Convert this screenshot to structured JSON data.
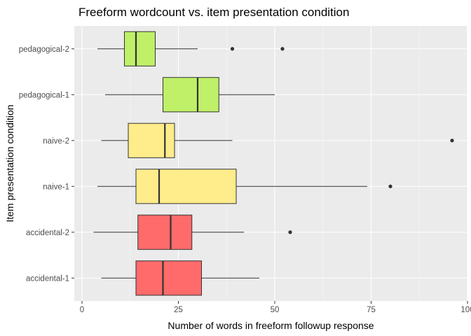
{
  "chart_data": {
    "type": "boxplot",
    "orientation": "horizontal",
    "title": "Freeform wordcount vs. item presentation condition",
    "xlabel": "Number of words in freeform followup response",
    "ylabel": "Item presentation condition",
    "xlim": [
      -2,
      100
    ],
    "x_ticks": [
      0,
      25,
      50,
      75,
      100
    ],
    "x_tick_labels": [
      "0",
      "25",
      "50",
      "75",
      "100"
    ],
    "grid": true,
    "legend": "none",
    "colors": {
      "panel": "#ebebeb",
      "grid_major": "#ffffff",
      "grid_minor": "#f5f5f5",
      "box_outline": "#333333",
      "accidental": "#ff6b6b",
      "naive": "#ffec8b",
      "pedagogical": "#bff068"
    },
    "categories": [
      "pedagogical-2",
      "pedagogical-1",
      "naive-2",
      "naive-1",
      "accidental-2",
      "accidental-1"
    ],
    "boxes": [
      {
        "category": "pedagogical-2",
        "min": 4,
        "q1": 11,
        "median": 14,
        "q3": 19,
        "max": 30,
        "outliers": [
          39,
          52
        ],
        "color": "#bff068"
      },
      {
        "category": "pedagogical-1",
        "min": 6,
        "q1": 21,
        "median": 30,
        "q3": 35.5,
        "max": 50,
        "outliers": [],
        "color": "#bff068"
      },
      {
        "category": "naive-2",
        "min": 5,
        "q1": 12,
        "median": 21.5,
        "q3": 24,
        "max": 39,
        "outliers": [
          96
        ],
        "color": "#ffec8b"
      },
      {
        "category": "naive-1",
        "min": 4,
        "q1": 14,
        "median": 20,
        "q3": 40,
        "max": 74,
        "outliers": [
          80
        ],
        "color": "#ffec8b"
      },
      {
        "category": "accidental-2",
        "min": 3,
        "q1": 14.5,
        "median": 23,
        "q3": 28.5,
        "max": 42,
        "outliers": [
          54
        ],
        "color": "#ff6b6b"
      },
      {
        "category": "accidental-1",
        "min": 5,
        "q1": 14,
        "median": 21,
        "q3": 31,
        "max": 46,
        "outliers": [],
        "color": "#ff6b6b"
      }
    ]
  }
}
